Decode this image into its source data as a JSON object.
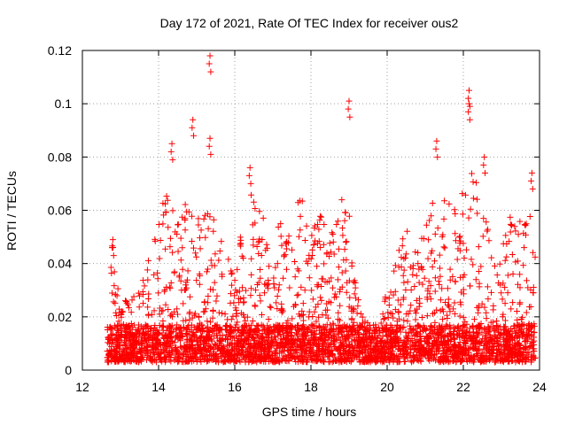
{
  "chart_data": {
    "type": "scatter",
    "title": "Day 172 of 2021, Rate Of TEC Index for receiver ous2",
    "xlabel": "GPS time / hours",
    "ylabel": "ROTI / TECUs",
    "xlim": [
      12,
      24
    ],
    "ylim": [
      0,
      0.12
    ],
    "xticks": [
      "12",
      "14",
      "16",
      "18",
      "20",
      "22",
      "24"
    ],
    "yticks": [
      "0",
      "0.02",
      "0.04",
      "0.06",
      "0.08",
      "0.1",
      "0.12"
    ],
    "grid": true,
    "marker": "plus",
    "color": "#ff0000",
    "x_extent": [
      12.65,
      23.9
    ],
    "peaks": [
      {
        "x": 15.35,
        "y": 0.118
      },
      {
        "x": 14.9,
        "y": 0.094
      },
      {
        "x": 19.0,
        "y": 0.101
      },
      {
        "x": 22.15,
        "y": 0.105
      },
      {
        "x": 22.15,
        "y": 0.1
      },
      {
        "x": 22.55,
        "y": 0.08
      },
      {
        "x": 14.35,
        "y": 0.085
      },
      {
        "x": 15.35,
        "y": 0.087
      },
      {
        "x": 21.3,
        "y": 0.086
      },
      {
        "x": 23.8,
        "y": 0.074
      },
      {
        "x": 16.4,
        "y": 0.076
      },
      {
        "x": 12.8,
        "y": 0.049
      }
    ],
    "envelope": [
      {
        "x": 12.65,
        "y": 0.03
      },
      {
        "x": 12.8,
        "y": 0.05
      },
      {
        "x": 13.0,
        "y": 0.025
      },
      {
        "x": 13.5,
        "y": 0.03
      },
      {
        "x": 13.9,
        "y": 0.05
      },
      {
        "x": 14.0,
        "y": 0.062
      },
      {
        "x": 14.3,
        "y": 0.07
      },
      {
        "x": 14.5,
        "y": 0.065
      },
      {
        "x": 14.8,
        "y": 0.064
      },
      {
        "x": 15.0,
        "y": 0.06
      },
      {
        "x": 15.3,
        "y": 0.065
      },
      {
        "x": 15.6,
        "y": 0.05
      },
      {
        "x": 16.0,
        "y": 0.04
      },
      {
        "x": 16.4,
        "y": 0.068
      },
      {
        "x": 16.8,
        "y": 0.06
      },
      {
        "x": 17.2,
        "y": 0.055
      },
      {
        "x": 17.5,
        "y": 0.06
      },
      {
        "x": 17.8,
        "y": 0.066
      },
      {
        "x": 18.2,
        "y": 0.062
      },
      {
        "x": 18.5,
        "y": 0.055
      },
      {
        "x": 18.8,
        "y": 0.066
      },
      {
        "x": 19.0,
        "y": 0.063
      },
      {
        "x": 19.3,
        "y": 0.025
      },
      {
        "x": 19.6,
        "y": 0.015
      },
      {
        "x": 20.0,
        "y": 0.03
      },
      {
        "x": 20.2,
        "y": 0.04
      },
      {
        "x": 20.5,
        "y": 0.06
      },
      {
        "x": 20.8,
        "y": 0.045
      },
      {
        "x": 21.2,
        "y": 0.072
      },
      {
        "x": 21.5,
        "y": 0.066
      },
      {
        "x": 21.9,
        "y": 0.064
      },
      {
        "x": 22.1,
        "y": 0.08
      },
      {
        "x": 22.5,
        "y": 0.065
      },
      {
        "x": 22.9,
        "y": 0.035
      },
      {
        "x": 23.2,
        "y": 0.06
      },
      {
        "x": 23.5,
        "y": 0.058
      },
      {
        "x": 23.8,
        "y": 0.068
      },
      {
        "x": 23.9,
        "y": 0.05
      }
    ],
    "baseline_range": [
      0.003,
      0.017
    ],
    "approx_point_count": 3800
  }
}
